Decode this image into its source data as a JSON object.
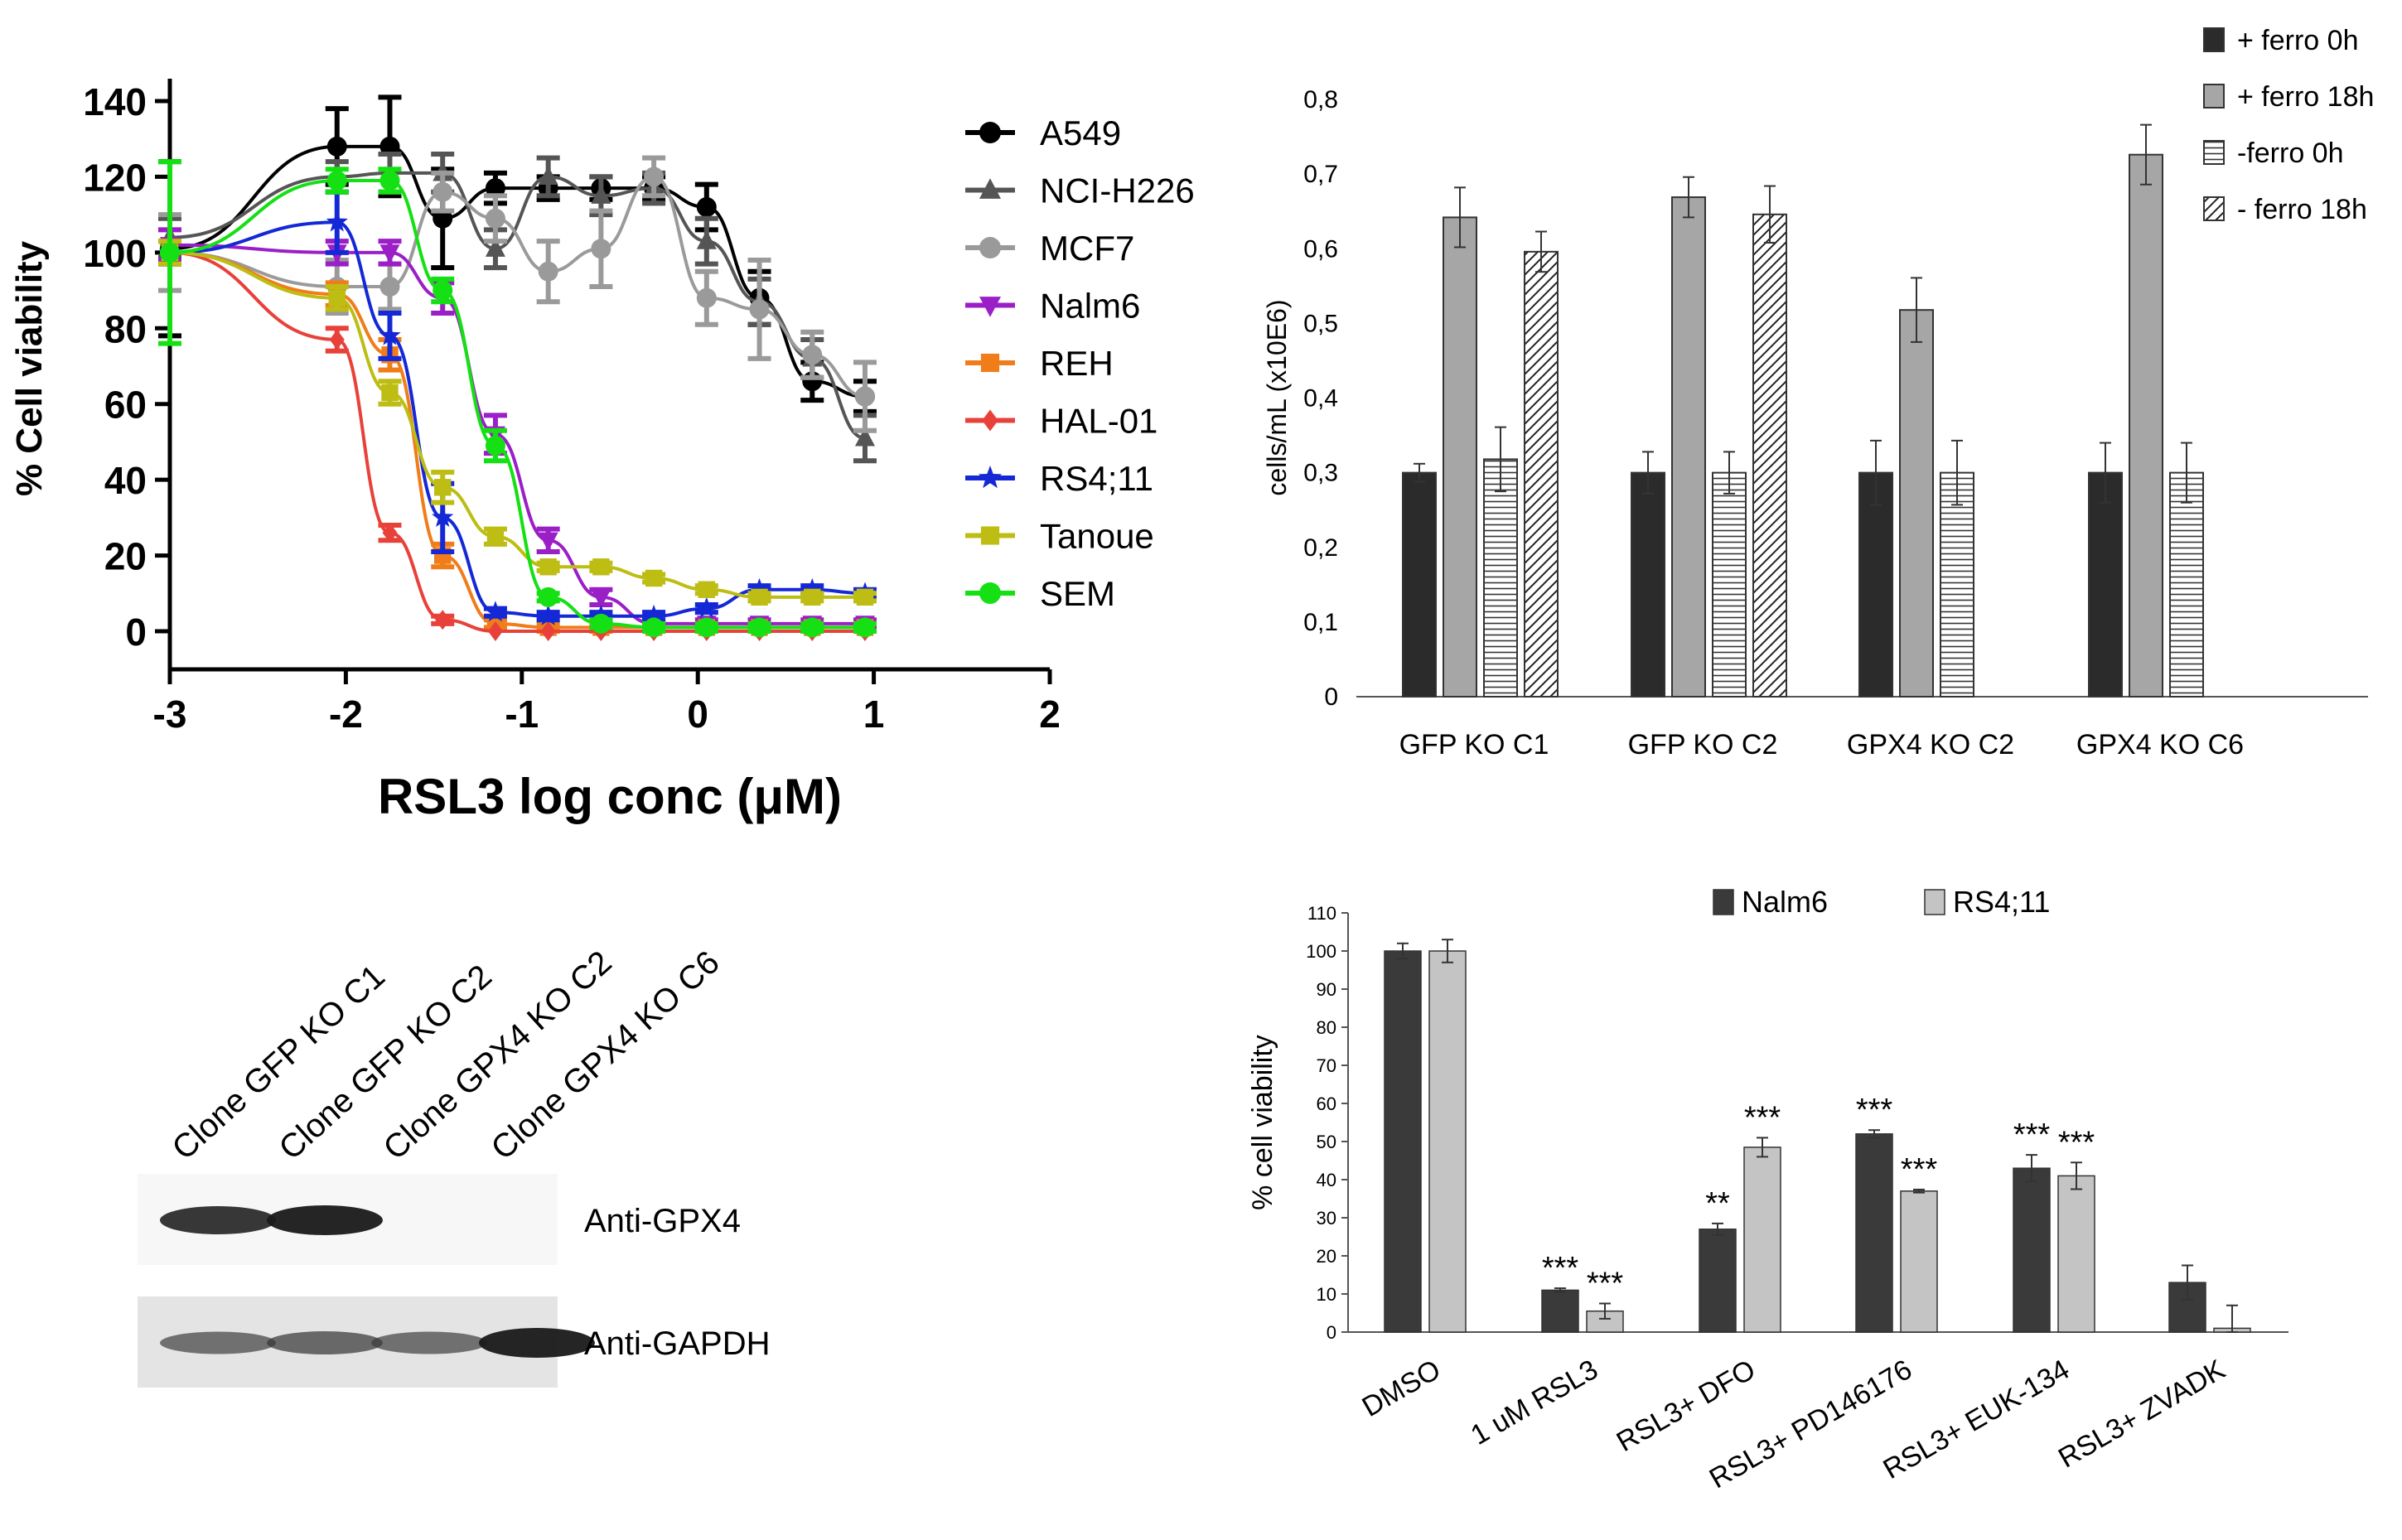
{
  "chart_data": [
    {
      "type": "scatter",
      "panel": "dose-response",
      "xlabel": "RSL3 log conc (μM)",
      "ylabel": "% Cell viability",
      "xlim": [
        -3,
        2
      ],
      "ylim": [
        -10,
        150
      ],
      "xticks": [
        "-3",
        "-2",
        "-1",
        "0",
        "1",
        "2"
      ],
      "yticks": [
        "0",
        "20",
        "40",
        "60",
        "80",
        "100",
        "120",
        "140"
      ],
      "legend_position": "right",
      "series": [
        {
          "name": "A549",
          "color": "#000000",
          "marker": "circle",
          "x": [
            -3,
            -2.05,
            -1.75,
            -1.45,
            -1.15,
            -0.85,
            -0.55,
            -0.25,
            0.05,
            0.35,
            0.65,
            0.95
          ],
          "y": [
            101,
            128,
            128,
            109,
            117,
            117,
            117,
            117,
            112,
            88,
            66,
            62
          ],
          "err": [
            23,
            10,
            13,
            13,
            4,
            3,
            3,
            3,
            6,
            7,
            5,
            4
          ]
        },
        {
          "name": "NCI-H226",
          "color": "#555555",
          "marker": "triangle",
          "x": [
            -3,
            -2.05,
            -1.75,
            -1.45,
            -1.15,
            -0.85,
            -0.55,
            -0.25,
            0.05,
            0.35,
            0.65,
            0.95
          ],
          "y": [
            104,
            120,
            121,
            121,
            101,
            120,
            115,
            117,
            103,
            87,
            72,
            51
          ],
          "err": [
            5,
            4,
            5,
            5,
            5,
            5,
            5,
            4,
            6,
            6,
            5,
            6
          ]
        },
        {
          "name": "MCF7",
          "color": "#9a9a9a",
          "marker": "circle",
          "x": [
            -3,
            -2.05,
            -1.75,
            -1.45,
            -1.15,
            -0.85,
            -0.55,
            -0.25,
            0.05,
            0.35,
            0.65,
            0.95
          ],
          "y": [
            100,
            91,
            91,
            116,
            109,
            95,
            101,
            120,
            88,
            85,
            73,
            62
          ],
          "err": [
            10,
            7,
            6,
            5,
            6,
            8,
            10,
            5,
            7,
            13,
            6,
            9
          ]
        },
        {
          "name": "Nalm6",
          "color": "#9b1fc7",
          "marker": "triangle-down",
          "x": [
            -3,
            -2.05,
            -1.75,
            -1.45,
            -1.15,
            -0.85,
            -0.55,
            -0.25,
            0.05,
            0.35,
            0.65,
            0.95
          ],
          "y": [
            102,
            100,
            100,
            88,
            52,
            24,
            9,
            2,
            2,
            2,
            2,
            2
          ],
          "err": [
            4,
            3,
            3,
            4,
            5,
            3,
            2,
            1,
            1,
            1,
            1,
            1
          ]
        },
        {
          "name": "REH",
          "color": "#f07d1a",
          "marker": "square",
          "x": [
            -3,
            -2.05,
            -1.75,
            -1.45,
            -1.15,
            -0.85,
            -0.55,
            -0.25,
            0.05,
            0.35,
            0.65,
            0.95
          ],
          "y": [
            100,
            89,
            73,
            20,
            2,
            1,
            1,
            1,
            1,
            1,
            1,
            1
          ],
          "err": [
            3,
            3,
            4,
            3,
            1,
            1,
            1,
            1,
            1,
            1,
            1,
            1
          ]
        },
        {
          "name": "HAL-01",
          "color": "#e8413a",
          "marker": "diamond",
          "x": [
            -3,
            -2.05,
            -1.75,
            -1.45,
            -1.15,
            -0.85,
            -0.55,
            -0.25,
            0.05,
            0.35,
            0.65,
            0.95
          ],
          "y": [
            100,
            77,
            26,
            3,
            0,
            0,
            0,
            0,
            0,
            0,
            0,
            0
          ],
          "err": [
            3,
            3,
            2,
            1,
            0,
            0,
            0,
            0,
            0,
            0,
            0,
            0
          ]
        },
        {
          "name": "RS4;11",
          "color": "#1428d6",
          "marker": "star",
          "x": [
            -3,
            -2.05,
            -1.75,
            -1.45,
            -1.15,
            -0.85,
            -0.55,
            -0.25,
            0.05,
            0.35,
            0.65,
            0.95
          ],
          "y": [
            100,
            108,
            78,
            30,
            5,
            4,
            4,
            4,
            6,
            11,
            11,
            10
          ],
          "err": [
            3,
            8,
            6,
            9,
            1,
            1,
            1,
            1,
            1,
            1,
            1,
            1
          ]
        },
        {
          "name": "Tanoue",
          "color": "#bdbd14",
          "marker": "square",
          "x": [
            -3,
            -2.05,
            -1.75,
            -1.45,
            -1.15,
            -0.85,
            -0.55,
            -0.25,
            0.05,
            0.35,
            0.65,
            0.95
          ],
          "y": [
            100,
            88,
            63,
            38,
            25,
            17,
            17,
            14,
            11,
            9,
            9,
            9
          ],
          "err": [
            3,
            3,
            3,
            4,
            2,
            1,
            1,
            1,
            1,
            1,
            1,
            1
          ]
        },
        {
          "name": "SEM",
          "color": "#14e014",
          "marker": "circle",
          "x": [
            -3,
            -2.05,
            -1.75,
            -1.45,
            -1.15,
            -0.85,
            -0.55,
            -0.25,
            0.05,
            0.35,
            0.65,
            0.95
          ],
          "y": [
            100,
            119,
            119,
            90,
            49,
            9,
            2,
            1,
            1,
            1,
            1,
            1
          ],
          "err": [
            24,
            3,
            3,
            3,
            4,
            1,
            1,
            1,
            1,
            1,
            1,
            1
          ]
        }
      ]
    },
    {
      "type": "bar",
      "panel": "growth",
      "ylabel": "cells/mL (x10E6)",
      "ylim": [
        0,
        0.8
      ],
      "yticks": [
        "0",
        "0,1",
        "0,2",
        "0,3",
        "0,4",
        "0,5",
        "0,6",
        "0,7",
        "0,8"
      ],
      "categories": [
        "GFP KO C1",
        "GFP KO C2",
        "GPX4 KO C2",
        "GPX4 KO C6"
      ],
      "legend_position": "top-right",
      "series": [
        {
          "name": "+ ferro 0h",
          "pattern": "solid-dark",
          "values": [
            0.3,
            0.3,
            0.3,
            0.3
          ],
          "err": [
            0.012,
            0.028,
            0.043,
            0.04
          ]
        },
        {
          "name": "+ ferro 18h",
          "pattern": "solid-grey",
          "values": [
            0.642,
            0.669,
            0.518,
            0.726
          ],
          "err": [
            0.04,
            0.027,
            0.043,
            0.04
          ]
        },
        {
          "name": "-ferro 0h",
          "pattern": "horizontal-lines",
          "values": [
            0.318,
            0.3,
            0.3,
            0.3
          ],
          "err": [
            0.043,
            0.028,
            0.043,
            0.04
          ]
        },
        {
          "name": "- ferro 18h",
          "pattern": "diagonal-lines",
          "values": [
            0.596,
            0.646,
            0,
            0
          ],
          "err": [
            0.027,
            0.038,
            0,
            0
          ]
        }
      ]
    },
    {
      "type": "bar",
      "panel": "viability-inhibitors",
      "ylabel": "% cell viability",
      "ylim": [
        0,
        110
      ],
      "yticks": [
        "0",
        "10",
        "20",
        "30",
        "40",
        "50",
        "60",
        "70",
        "80",
        "90",
        "100",
        "110"
      ],
      "categories": [
        "DMSO",
        "1 uM RSL3",
        "RSL3+ DFO",
        "RSL3+ PD146176",
        "RSL3+ EUK-134",
        "RSL3+ ZVADK"
      ],
      "legend_position": "top",
      "series": [
        {
          "name": "Nalm6",
          "color": "#3a3a3a",
          "values": [
            100,
            11,
            27,
            52,
            43,
            13
          ],
          "err": [
            2,
            0.5,
            1.5,
            1,
            3.5,
            4.5
          ],
          "annotations": [
            "",
            "***",
            "**",
            "***",
            "***",
            ""
          ]
        },
        {
          "name": "RS4;11",
          "color": "#c4c4c4",
          "values": [
            100,
            5.5,
            48.5,
            37,
            41,
            1
          ],
          "err": [
            3,
            2,
            2.5,
            0.4,
            3.5,
            6
          ],
          "annotations": [
            "",
            "***",
            "***",
            "***",
            "***",
            ""
          ]
        }
      ]
    }
  ],
  "western_blot": {
    "lanes": [
      "Clone GFP KO C1",
      "Clone GFP KO C2",
      "Clone GPX4 KO C2",
      "Clone GPX4 KO C6"
    ],
    "rows": [
      {
        "label": "Anti-GPX4",
        "intensities": [
          0.9,
          1.0,
          0,
          0
        ]
      },
      {
        "label": "Anti-GAPDH",
        "intensities": [
          0.55,
          0.6,
          0.55,
          1.0
        ]
      }
    ]
  }
}
